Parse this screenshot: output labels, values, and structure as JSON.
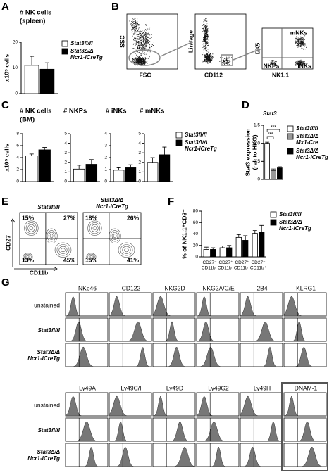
{
  "panel_labels": [
    "A",
    "B",
    "C",
    "D",
    "E",
    "F",
    "G"
  ],
  "chart_data": [
    {
      "type": "bar",
      "title": "# NK cells",
      "subtitle": "(spleen)",
      "y_label": "x10⁵ cells",
      "ylim": [
        0,
        20
      ],
      "yticks": [
        0,
        10,
        20
      ],
      "series": [
        {
          "name": "Stat3fl/fl",
          "color": "#ffffff",
          "values": [
            11
          ],
          "errors": [
            3.5
          ]
        },
        {
          "name": "Stat3Δ/Δ Ncr1-iCreTg",
          "color": "#000000",
          "values": [
            9.5
          ],
          "errors": [
            2.5
          ]
        }
      ]
    },
    {
      "type": "bar",
      "title": "# NK cells",
      "subtitle": "(BM)",
      "y_label": "x10⁵ cells",
      "ylim": [
        0,
        8
      ],
      "yticks": [
        0,
        2,
        4,
        6,
        8
      ],
      "series": [
        {
          "color": "#ffffff",
          "values": [
            4.3
          ],
          "errors": [
            0.3
          ]
        },
        {
          "color": "#000000",
          "values": [
            5.3
          ],
          "errors": [
            0.4
          ]
        }
      ]
    },
    {
      "type": "bar",
      "title": "# NKPs",
      "ylim": [
        0,
        5
      ],
      "yticks": [
        0,
        1,
        2,
        3,
        4,
        5
      ],
      "series": [
        {
          "color": "#ffffff",
          "values": [
            1.3
          ],
          "errors": [
            0.4
          ]
        },
        {
          "color": "#000000",
          "values": [
            1.8
          ],
          "errors": [
            0.5
          ]
        }
      ]
    },
    {
      "type": "bar",
      "title": "# iNKs",
      "ylim": [
        0,
        4
      ],
      "yticks": [
        0,
        1,
        2,
        3,
        4
      ],
      "series": [
        {
          "color": "#ffffff",
          "values": [
            0.95
          ],
          "errors": [
            0.2
          ]
        },
        {
          "color": "#000000",
          "values": [
            1.15
          ],
          "errors": [
            0.25
          ]
        }
      ]
    },
    {
      "type": "bar",
      "title": "# mNKs",
      "ylim": [
        0,
        5
      ],
      "yticks": [
        0,
        1,
        2,
        3,
        4,
        5
      ],
      "series": [
        {
          "name": "Stat3fl/fl",
          "color": "#ffffff",
          "values": [
            2.0
          ],
          "errors": [
            0.5
          ]
        },
        {
          "name": "Stat3Δ/Δ Ncr1-iCreTg",
          "color": "#000000",
          "values": [
            2.8
          ],
          "errors": [
            0.8
          ]
        }
      ]
    },
    {
      "type": "bar",
      "title": "Stat3",
      "y_label": [
        "Stat3 expression",
        "(rel. to HKG)"
      ],
      "ylim": [
        0,
        1.5
      ],
      "yticks": [
        0,
        0.5,
        {
          "value": 1.0,
          "label": "1.0"
        },
        1.5
      ],
      "annotations": [
        "***",
        "***"
      ],
      "series": [
        {
          "name": "Stat3fl/fl",
          "color": "#ffffff",
          "values": [
            1.0
          ],
          "errors": [
            0.03
          ]
        },
        {
          "name": "Stat3Δ/Δ Mx1-Cre",
          "color": "#999999",
          "values": [
            0.25
          ],
          "errors": [
            0.04
          ]
        },
        {
          "name": "Stat3Δ/Δ Ncr1-iCreTg",
          "color": "#000000",
          "values": [
            0.32
          ],
          "errors": [
            0.03
          ]
        }
      ]
    },
    {
      "type": "bar",
      "y_label": "% of NK1.1⁺CD3⁻",
      "ylim": [
        0,
        80
      ],
      "yticks": [
        0,
        20,
        40,
        60,
        80
      ],
      "categories": [
        "CD27⁻ CD11b⁻",
        "CD27⁺ CD11b⁻",
        "CD27⁺ CD11b⁺",
        "CD27⁻ CD11b⁺"
      ],
      "series": [
        {
          "name": "Stat3fl/fl",
          "color": "#ffffff",
          "values": [
            13,
            16,
            34,
            41
          ],
          "errors": [
            4,
            3,
            5,
            5
          ]
        },
        {
          "name": "Stat3Δ/Δ Ncr1-iCreTg",
          "color": "#000000",
          "values": [
            13,
            16,
            29,
            43
          ],
          "errors": [
            3,
            4,
            8,
            12
          ]
        }
      ]
    }
  ],
  "panel_b": {
    "axes": [
      {
        "x": "FSC",
        "y": "SSC"
      },
      {
        "x": "CD112",
        "y": "Lineage"
      },
      {
        "x": "NK1.1",
        "y": "DX5"
      }
    ],
    "gates": [
      "mNKs",
      "NKPs",
      "iNKs"
    ]
  },
  "panel_e": {
    "x_label": "CD11b",
    "y_label": "CD27",
    "plots": [
      {
        "title": "Stat3fl/fl",
        "quadrants": [
          "15%",
          "27%",
          "13%",
          "45%"
        ]
      },
      {
        "title": "Stat3Δ/Δ Ncr1-iCreTg",
        "quadrants": [
          "18%",
          "26%",
          "15%",
          "41%"
        ]
      }
    ]
  },
  "panel_g": {
    "rows": [
      "unstained",
      "Stat3fl/fl",
      "Stat3Δ/Δ Ncr1-iCreTg"
    ],
    "blocks": [
      [
        "NKp46",
        "CD122",
        "NKG2D",
        "NKG2A/C/E",
        "2B4",
        "KLRG1"
      ],
      [
        "Ly49A",
        "Ly49C/I",
        "Ly49D",
        "Ly49G2",
        "Ly49H",
        "DNAM-1"
      ]
    ]
  }
}
